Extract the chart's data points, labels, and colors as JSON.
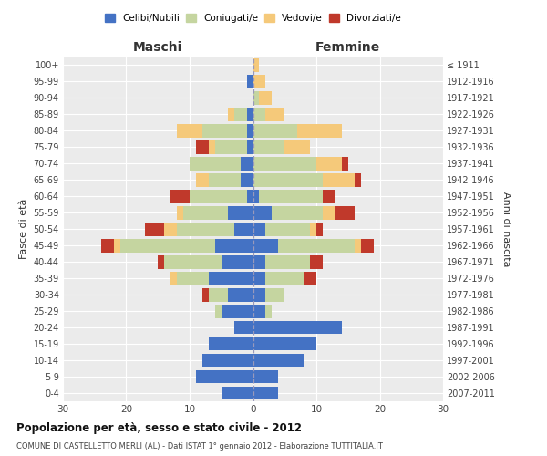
{
  "age_groups": [
    "0-4",
    "5-9",
    "10-14",
    "15-19",
    "20-24",
    "25-29",
    "30-34",
    "35-39",
    "40-44",
    "45-49",
    "50-54",
    "55-59",
    "60-64",
    "65-69",
    "70-74",
    "75-79",
    "80-84",
    "85-89",
    "90-94",
    "95-99",
    "100+"
  ],
  "birth_years": [
    "2007-2011",
    "2002-2006",
    "1997-2001",
    "1992-1996",
    "1987-1991",
    "1982-1986",
    "1977-1981",
    "1972-1976",
    "1967-1971",
    "1962-1966",
    "1957-1961",
    "1952-1956",
    "1947-1951",
    "1942-1946",
    "1937-1941",
    "1932-1936",
    "1927-1931",
    "1922-1926",
    "1917-1921",
    "1912-1916",
    "≤ 1911"
  ],
  "male": {
    "celibi": [
      5,
      9,
      8,
      7,
      3,
      5,
      4,
      7,
      5,
      6,
      3,
      4,
      1,
      2,
      2,
      1,
      1,
      1,
      0,
      1,
      0
    ],
    "coniugati": [
      0,
      0,
      0,
      0,
      0,
      1,
      3,
      5,
      9,
      15,
      9,
      7,
      9,
      5,
      8,
      5,
      7,
      2,
      0,
      0,
      0
    ],
    "vedovi": [
      0,
      0,
      0,
      0,
      0,
      0,
      0,
      1,
      0,
      1,
      2,
      1,
      0,
      2,
      0,
      1,
      4,
      1,
      0,
      0,
      0
    ],
    "divorziati": [
      0,
      0,
      0,
      0,
      0,
      0,
      1,
      0,
      1,
      2,
      3,
      0,
      3,
      0,
      0,
      2,
      0,
      0,
      0,
      0,
      0
    ]
  },
  "female": {
    "nubili": [
      4,
      4,
      8,
      10,
      14,
      2,
      2,
      2,
      2,
      4,
      2,
      3,
      1,
      0,
      0,
      0,
      0,
      0,
      0,
      0,
      0
    ],
    "coniugate": [
      0,
      0,
      0,
      0,
      0,
      1,
      3,
      6,
      7,
      12,
      7,
      8,
      10,
      11,
      10,
      5,
      7,
      2,
      1,
      0,
      0
    ],
    "vedove": [
      0,
      0,
      0,
      0,
      0,
      0,
      0,
      0,
      0,
      1,
      1,
      2,
      0,
      5,
      4,
      4,
      7,
      3,
      2,
      2,
      1
    ],
    "divorziate": [
      0,
      0,
      0,
      0,
      0,
      0,
      0,
      2,
      2,
      2,
      1,
      3,
      2,
      1,
      1,
      0,
      0,
      0,
      0,
      0,
      0
    ]
  },
  "colors": {
    "celibi": "#4472C4",
    "coniugati": "#C5D5A0",
    "vedovi": "#F5C97A",
    "divorziati": "#C0392B"
  },
  "title": "Popolazione per età, sesso e stato civile - 2012",
  "subtitle": "COMUNE DI CASTELLETTO MERLI (AL) - Dati ISTAT 1° gennaio 2012 - Elaborazione TUTTITALIA.IT",
  "ylabel": "Fasce di età",
  "ylabel_right": "Anni di nascita",
  "xlabel_left": "Maschi",
  "xlabel_right": "Femmine",
  "xlim": 30,
  "xticks": [
    -30,
    -20,
    -10,
    0,
    10,
    20,
    30
  ],
  "legend_labels": [
    "Celibi/Nubili",
    "Coniugati/e",
    "Vedovi/e",
    "Divorziati/e"
  ]
}
